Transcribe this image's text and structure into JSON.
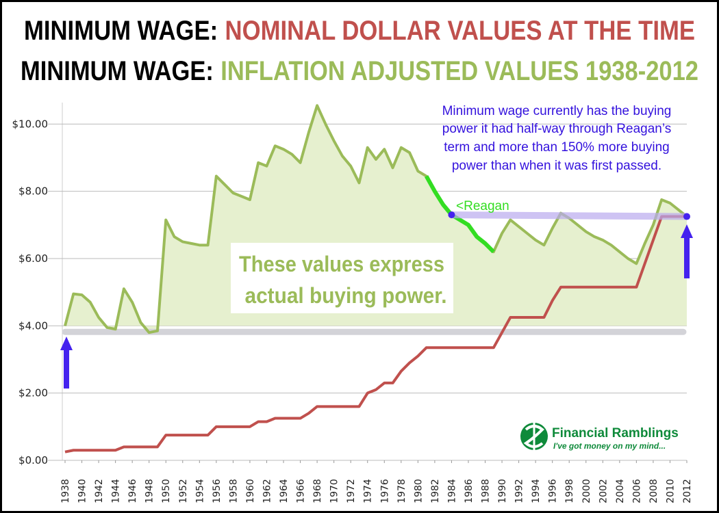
{
  "titles": {
    "line1_prefix": "MINIMUM WAGE:",
    "line1_suffix": "NOMINAL DOLLAR VALUES AT THE TIME",
    "line2_prefix": "MINIMUM WAGE:",
    "line2_suffix": "INFLATION ADJUSTED VALUES 1938-2012"
  },
  "annotation": {
    "lines": [
      "Minimum wage currently has the buying",
      "power it had half-way through Reagan’s",
      "term and more than 150% more buying",
      "power than when it was first passed."
    ]
  },
  "callout": {
    "lines": [
      "These values express",
      "actual buying power."
    ]
  },
  "reagan_label": "<Reagan",
  "logo": {
    "name": "Financial Ramblings",
    "tagline": "I've got money on my mind..."
  },
  "colors": {
    "nominal": "#c0504d",
    "adjusted_line": "#9bbb59",
    "adjusted_fill": "#e6f0cf",
    "reagan": "#33dd22",
    "arrow": "#4422ee",
    "annotation_text": "#3311dd",
    "baseline_band": "#d3d3d8",
    "reference_band": "#b9a9ee",
    "callout_text": "#9bbb59",
    "logo_green": "#0e8a3a"
  },
  "chart_data": {
    "type": "line",
    "y_ticks": [
      "$0.00",
      "$2.00",
      "$4.00",
      "$6.00",
      "$8.00",
      "$10.00"
    ],
    "ylim": [
      0,
      10.8
    ],
    "xlim": [
      1938,
      2012
    ],
    "x_ticks": [
      1938,
      1940,
      1942,
      1944,
      1946,
      1948,
      1950,
      1952,
      1954,
      1956,
      1958,
      1960,
      1962,
      1964,
      1966,
      1968,
      1970,
      1972,
      1974,
      1976,
      1978,
      1980,
      1982,
      1984,
      1986,
      1988,
      1990,
      1992,
      1994,
      1996,
      1998,
      2000,
      2002,
      2004,
      2006,
      2008,
      2010,
      2012
    ],
    "grid": true,
    "series": [
      {
        "key": "adjusted",
        "x": [
          1938,
          1939,
          1940,
          1941,
          1942,
          1943,
          1944,
          1945,
          1946,
          1947,
          1948,
          1949,
          1950,
          1951,
          1952,
          1953,
          1954,
          1955,
          1956,
          1957,
          1958,
          1959,
          1960,
          1961,
          1962,
          1963,
          1964,
          1965,
          1966,
          1967,
          1968,
          1969,
          1970,
          1971,
          1972,
          1973,
          1974,
          1975,
          1976,
          1977,
          1978,
          1979,
          1980,
          1981,
          1982,
          1983,
          1984,
          1985,
          1986,
          1987,
          1988,
          1989,
          1990,
          1991,
          1992,
          1993,
          1994,
          1995,
          1996,
          1997,
          1998,
          1999,
          2000,
          2001,
          2002,
          2003,
          2004,
          2005,
          2006,
          2007,
          2008,
          2009,
          2010,
          2011,
          2012
        ],
        "values": [
          4.0,
          4.95,
          4.92,
          4.7,
          4.25,
          3.95,
          3.9,
          5.1,
          4.7,
          4.1,
          3.8,
          3.85,
          7.15,
          6.65,
          6.5,
          6.45,
          6.4,
          6.4,
          8.45,
          8.2,
          7.95,
          7.85,
          7.75,
          8.85,
          8.75,
          9.35,
          9.25,
          9.1,
          8.85,
          9.75,
          10.55,
          10.0,
          9.5,
          9.05,
          8.75,
          8.25,
          9.3,
          8.95,
          9.25,
          8.7,
          9.3,
          9.15,
          8.6,
          8.45,
          8.0,
          7.6,
          7.3,
          7.15,
          7.0,
          6.65,
          6.45,
          6.2,
          6.75,
          7.15,
          6.95,
          6.75,
          6.55,
          6.4,
          6.9,
          7.35,
          7.2,
          7.0,
          6.8,
          6.65,
          6.55,
          6.4,
          6.2,
          6.0,
          5.85,
          6.45,
          7.0,
          7.75,
          7.65,
          7.45,
          7.25
        ]
      },
      {
        "key": "nominal",
        "x": [
          1938,
          1939,
          1940,
          1941,
          1942,
          1943,
          1944,
          1945,
          1946,
          1947,
          1948,
          1949,
          1950,
          1951,
          1952,
          1953,
          1954,
          1955,
          1956,
          1957,
          1958,
          1959,
          1960,
          1961,
          1962,
          1963,
          1964,
          1965,
          1966,
          1967,
          1968,
          1969,
          1970,
          1971,
          1972,
          1973,
          1974,
          1975,
          1976,
          1977,
          1978,
          1979,
          1980,
          1981,
          1982,
          1983,
          1984,
          1985,
          1986,
          1987,
          1988,
          1989,
          1990,
          1991,
          1992,
          1993,
          1994,
          1995,
          1996,
          1997,
          1998,
          1999,
          2000,
          2001,
          2002,
          2003,
          2004,
          2005,
          2006,
          2007,
          2008,
          2009,
          2010,
          2011,
          2012
        ],
        "values": [
          0.25,
          0.3,
          0.3,
          0.3,
          0.3,
          0.3,
          0.3,
          0.4,
          0.4,
          0.4,
          0.4,
          0.4,
          0.75,
          0.75,
          0.75,
          0.75,
          0.75,
          0.75,
          1.0,
          1.0,
          1.0,
          1.0,
          1.0,
          1.15,
          1.15,
          1.25,
          1.25,
          1.25,
          1.25,
          1.4,
          1.6,
          1.6,
          1.6,
          1.6,
          1.6,
          1.6,
          2.0,
          2.1,
          2.3,
          2.3,
          2.65,
          2.9,
          3.1,
          3.35,
          3.35,
          3.35,
          3.35,
          3.35,
          3.35,
          3.35,
          3.35,
          3.35,
          3.8,
          4.25,
          4.25,
          4.25,
          4.25,
          4.25,
          4.75,
          5.15,
          5.15,
          5.15,
          5.15,
          5.15,
          5.15,
          5.15,
          5.15,
          5.15,
          5.15,
          5.85,
          6.55,
          7.25,
          7.25,
          7.25,
          7.25
        ]
      }
    ],
    "reagan_segment": {
      "x_from": 1981,
      "x_to": 1989
    },
    "reference_line": {
      "from": [
        1984,
        7.3
      ],
      "to": [
        2012,
        7.25
      ]
    },
    "baseline_band_value": 3.9
  }
}
